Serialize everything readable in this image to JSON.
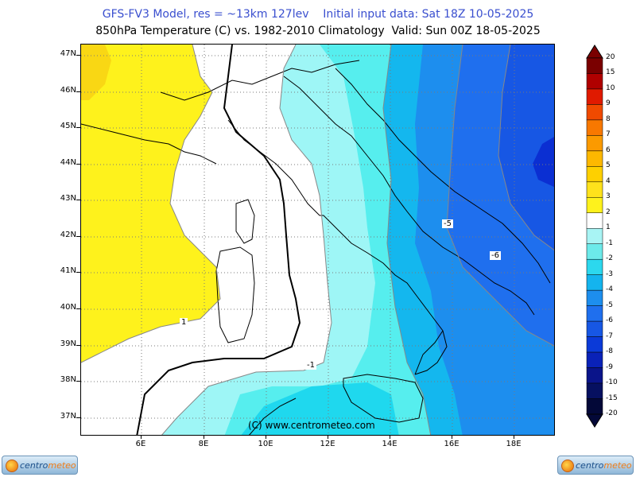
{
  "header": {
    "line1": "GFS-FV3 Model, res = ~13km 127lev    Initial input data: Sat 18Z 10-05-2025",
    "line2": "850hPa Temperature (C) vs. 1982-2010 Climatology  Valid: Sun 00Z 18-05-2025"
  },
  "map": {
    "lat_labels": [
      "47N",
      "46N",
      "45N",
      "44N",
      "43N",
      "42N",
      "41N",
      "40N",
      "39N",
      "38N",
      "37N"
    ],
    "lon_labels": [
      "6E",
      "8E",
      "10E",
      "12E",
      "14E",
      "16E",
      "18E"
    ],
    "contour_labels": [
      "1",
      "-1",
      "-5",
      "-6"
    ],
    "copyright": "(C) www.centrometeo.com",
    "colors": {
      "pos1_2": "#fef21c",
      "pos2_3": "#f9d714",
      "zero": "#ffffff",
      "neg0_1": "#9ef6f6",
      "neg1_2": "#56eeee",
      "neg2_3": "#1fd8ee",
      "neg3_4": "#14b7ee",
      "neg4_5": "#1d8eee",
      "neg5_6": "#1f6fee",
      "neg6_7": "#1757e4",
      "neg7_8": "#0b2fd2"
    }
  },
  "colorbar": {
    "labels": [
      "20",
      "15",
      "10",
      "9",
      "8",
      "7",
      "6",
      "5",
      "4",
      "3",
      "2",
      "1",
      "-1",
      "-2",
      "-3",
      "-4",
      "-5",
      "-6",
      "-7",
      "-8",
      "-9",
      "-10",
      "-15",
      "-20"
    ],
    "colors": [
      "#7a0000",
      "#b00000",
      "#e01a00",
      "#f04a00",
      "#f87800",
      "#fb9a00",
      "#fdb800",
      "#fed000",
      "#fee21c",
      "#fef21c",
      "#ffffff",
      "#a8f4f4",
      "#6ceaea",
      "#2cd8ee",
      "#14b4ee",
      "#1d8eee",
      "#1f6fee",
      "#1757e4",
      "#0b3ad8",
      "#0a22b8",
      "#0a148a",
      "#061060",
      "#030838"
    ]
  },
  "brand": {
    "left_pre": "centro",
    "left_post": "meteo",
    "right_pre": "centro",
    "right_post": "meteo"
  }
}
